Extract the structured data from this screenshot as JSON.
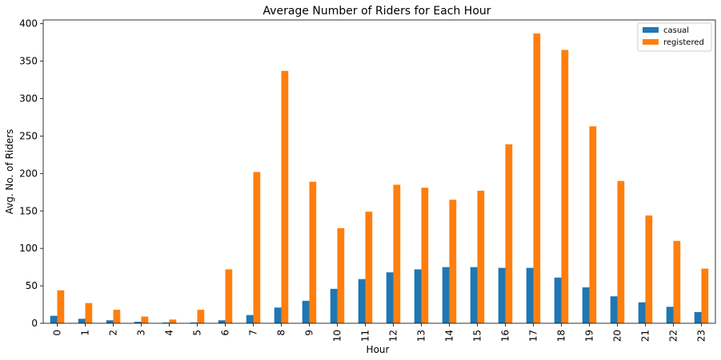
{
  "chart_data": {
    "type": "bar",
    "title": "Average Number of Riders for Each Hour",
    "xlabel": "Hour",
    "ylabel": "Avg. No. of Riders",
    "ylim": [
      0,
      405
    ],
    "yticks": [
      0,
      50,
      100,
      150,
      200,
      250,
      300,
      350,
      400
    ],
    "categories": [
      "0",
      "1",
      "2",
      "3",
      "4",
      "5",
      "6",
      "7",
      "8",
      "9",
      "10",
      "11",
      "12",
      "13",
      "14",
      "15",
      "16",
      "17",
      "18",
      "19",
      "20",
      "21",
      "22",
      "23"
    ],
    "series": [
      {
        "name": "casual",
        "color": "#1f77b4",
        "values": [
          10,
          6,
          4,
          2,
          1,
          1,
          4,
          11,
          21,
          30,
          46,
          59,
          68,
          72,
          75,
          75,
          74,
          74,
          61,
          48,
          36,
          28,
          22,
          15
        ]
      },
      {
        "name": "registered",
        "color": "#ff7f0e",
        "values": [
          44,
          27,
          18,
          9,
          5,
          18,
          72,
          202,
          337,
          189,
          127,
          149,
          185,
          181,
          165,
          177,
          239,
          387,
          365,
          263,
          190,
          144,
          110,
          73
        ]
      }
    ],
    "legend_position": "top-right",
    "grid": false
  }
}
